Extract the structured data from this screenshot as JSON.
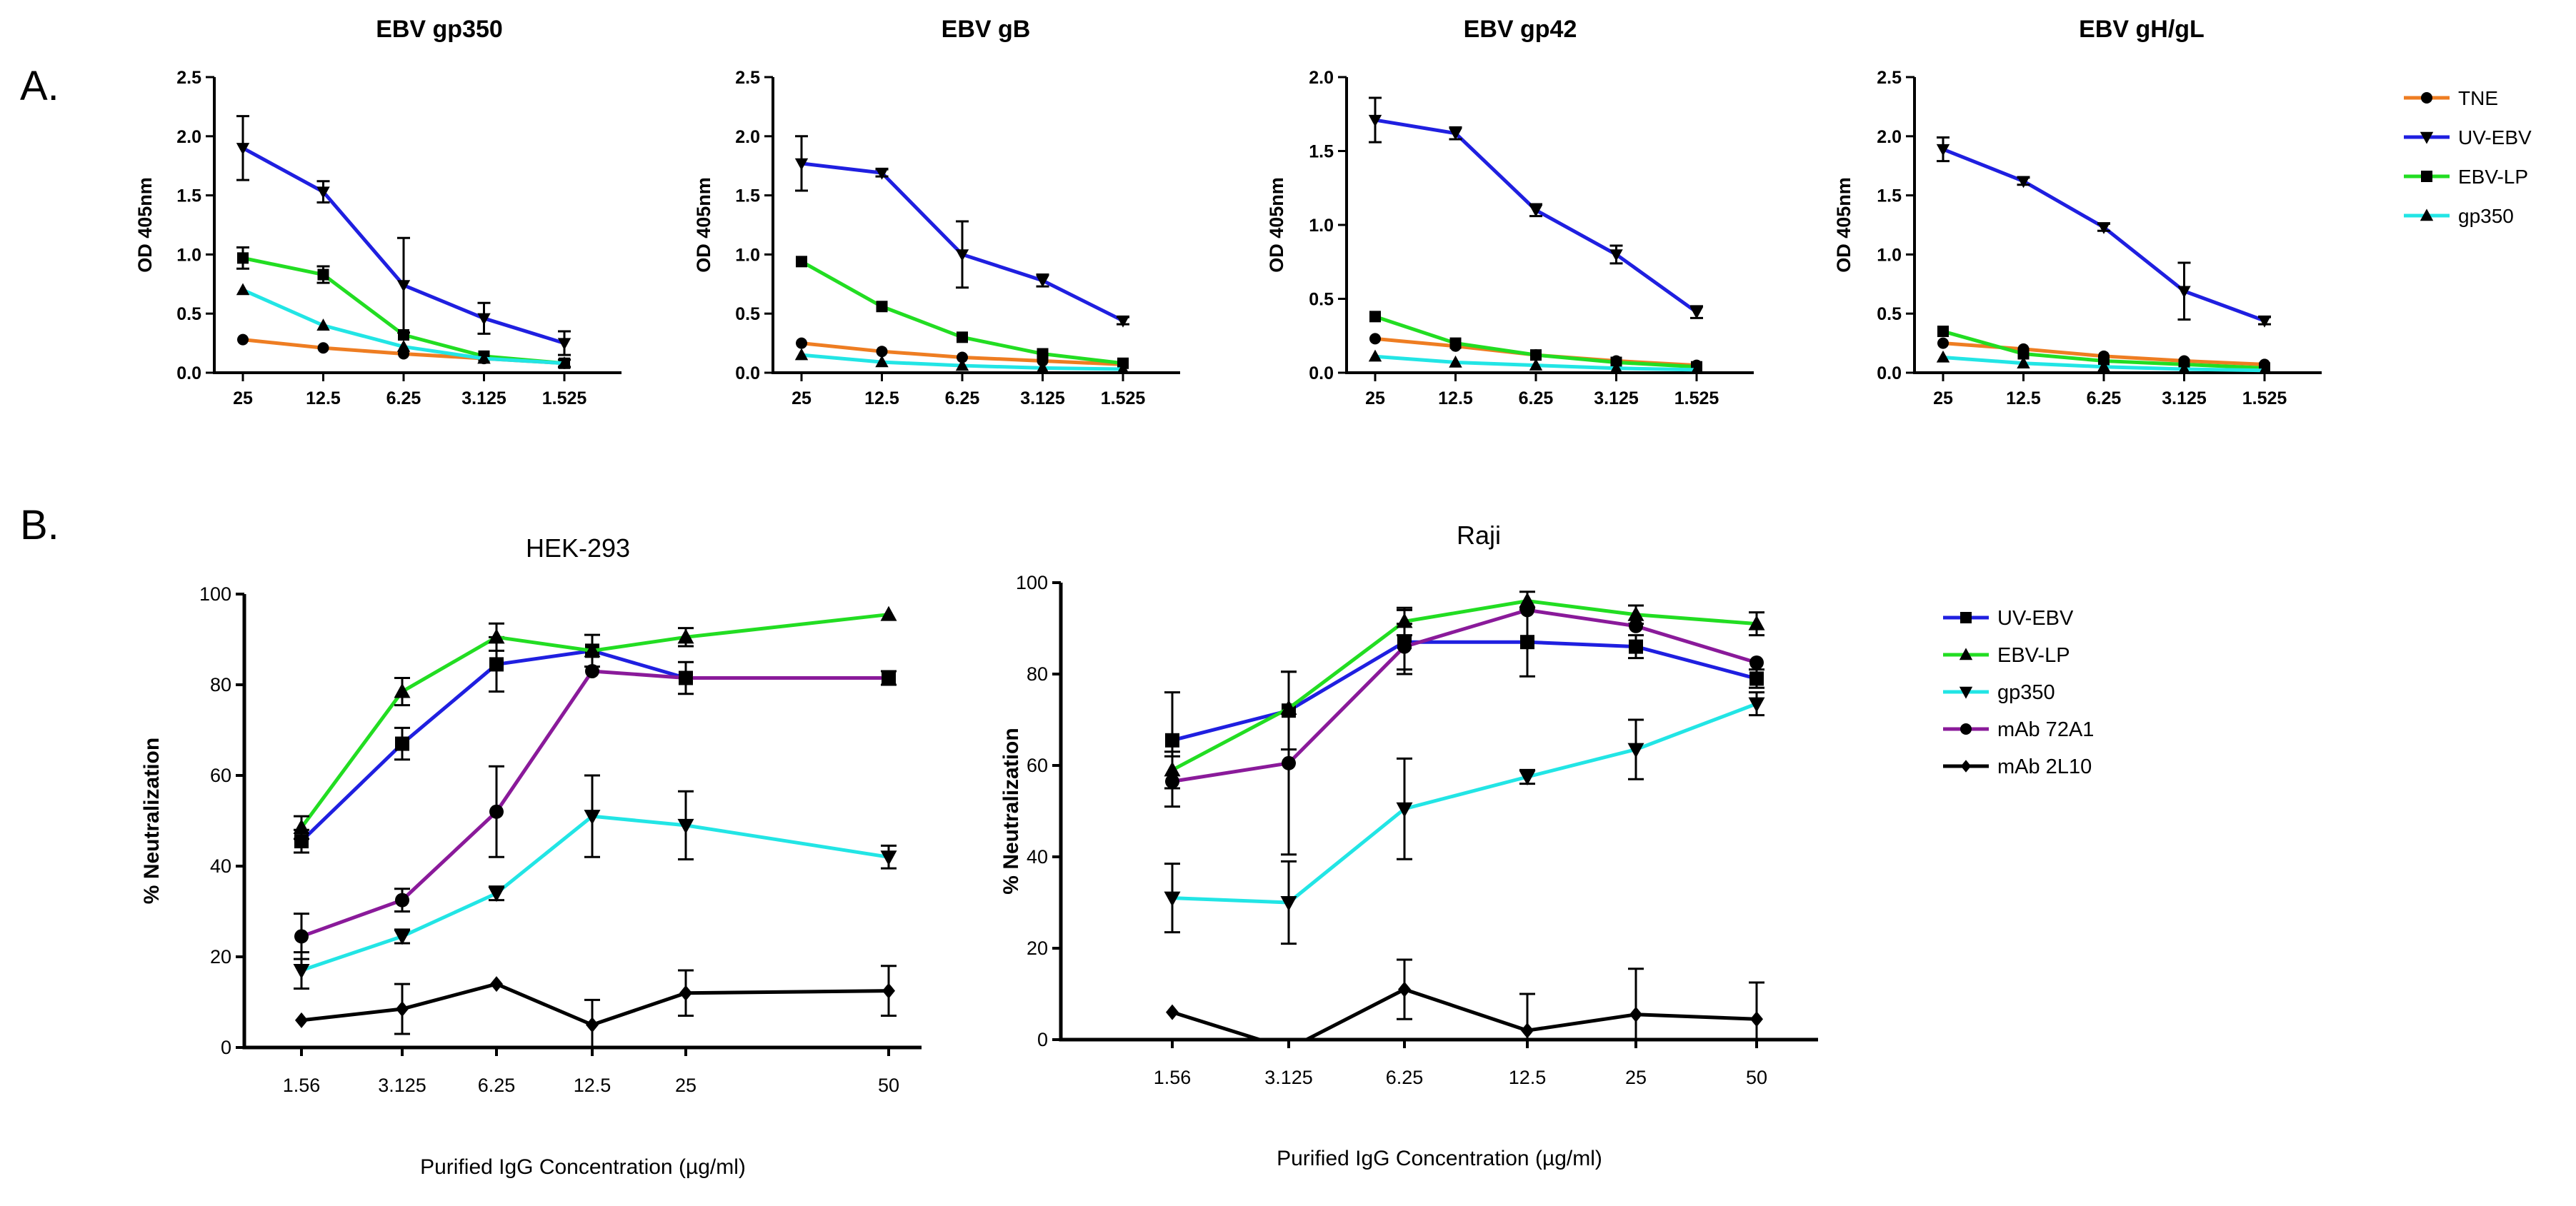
{
  "panel_labels": {
    "a": "A.",
    "b": "B."
  },
  "colors": {
    "TNE": "#ee7d22",
    "UV-EBV": "#1f1fe0",
    "EBV-LP": "#22dd22",
    "gp350": "#22e5e5",
    "mAb 72A1": "#8a1a9a",
    "mAb 2L10": "#000000"
  },
  "chart_data": [
    {
      "type": "line",
      "panel": "A",
      "title": "EBV gp350",
      "xlabel": "",
      "ylabel": "OD 405nm",
      "ylim": [
        0,
        2.5
      ],
      "yticks": [
        "0.0",
        "0.5",
        "1.0",
        "1.5",
        "2.0",
        "2.5"
      ],
      "categories": [
        "25",
        "12.5",
        "6.25",
        "3.125",
        "1.525"
      ],
      "series": [
        {
          "name": "TNE",
          "marker": "circle",
          "values": [
            0.28,
            0.21,
            0.16,
            0.12,
            0.08
          ],
          "errors": [
            0,
            0,
            0,
            0,
            0
          ]
        },
        {
          "name": "UV-EBV",
          "marker": "triangle-down",
          "values": [
            1.9,
            1.53,
            0.74,
            0.46,
            0.25
          ],
          "errors": [
            0.27,
            0.09,
            0.4,
            0.13,
            0.1
          ]
        },
        {
          "name": "EBV-LP",
          "marker": "square",
          "values": [
            0.97,
            0.83,
            0.32,
            0.14,
            0.08
          ],
          "errors": [
            0.09,
            0.07,
            0,
            0,
            0.03
          ]
        },
        {
          "name": "gp350",
          "marker": "triangle-up",
          "values": [
            0.7,
            0.4,
            0.22,
            0.12,
            0.08
          ],
          "errors": [
            0,
            0,
            0,
            0,
            0
          ]
        }
      ]
    },
    {
      "type": "line",
      "panel": "A",
      "title": "EBV gB",
      "xlabel": "",
      "ylabel": "OD 405nm",
      "ylim": [
        0,
        2.5
      ],
      "yticks": [
        "0.0",
        "0.5",
        "1.0",
        "1.5",
        "2.0",
        "2.5"
      ],
      "categories": [
        "25",
        "12.5",
        "6.25",
        "3.125",
        "1.525"
      ],
      "series": [
        {
          "name": "TNE",
          "marker": "circle",
          "values": [
            0.25,
            0.18,
            0.13,
            0.1,
            0.07
          ],
          "errors": [
            0,
            0,
            0,
            0,
            0
          ]
        },
        {
          "name": "UV-EBV",
          "marker": "triangle-down",
          "values": [
            1.77,
            1.69,
            1.0,
            0.78,
            0.44
          ],
          "errors": [
            0.23,
            0.03,
            0.28,
            0.05,
            0.03
          ]
        },
        {
          "name": "EBV-LP",
          "marker": "square",
          "values": [
            0.94,
            0.56,
            0.3,
            0.16,
            0.08
          ],
          "errors": [
            0,
            0,
            0,
            0,
            0
          ]
        },
        {
          "name": "gp350",
          "marker": "triangle-up",
          "values": [
            0.15,
            0.09,
            0.06,
            0.04,
            0.03
          ],
          "errors": [
            0,
            0,
            0,
            0,
            0
          ]
        }
      ]
    },
    {
      "type": "line",
      "panel": "A",
      "title": "EBV gp42",
      "xlabel": "",
      "ylabel": "OD 405nm",
      "ylim": [
        0,
        2.0
      ],
      "yticks": [
        "0.0",
        "0.5",
        "1.0",
        "1.5",
        "2.0"
      ],
      "categories": [
        "25",
        "12.5",
        "6.25",
        "3.125",
        "1.525"
      ],
      "series": [
        {
          "name": "TNE",
          "marker": "circle",
          "values": [
            0.23,
            0.18,
            0.12,
            0.08,
            0.05
          ],
          "errors": [
            0,
            0,
            0,
            0,
            0
          ]
        },
        {
          "name": "UV-EBV",
          "marker": "triangle-down",
          "values": [
            1.71,
            1.62,
            1.1,
            0.8,
            0.41
          ],
          "errors": [
            0.15,
            0.04,
            0.04,
            0.06,
            0.04
          ]
        },
        {
          "name": "EBV-LP",
          "marker": "square",
          "values": [
            0.38,
            0.2,
            0.12,
            0.07,
            0.04
          ],
          "errors": [
            0,
            0,
            0,
            0,
            0
          ]
        },
        {
          "name": "gp350",
          "marker": "triangle-up",
          "values": [
            0.11,
            0.07,
            0.05,
            0.03,
            0.02
          ],
          "errors": [
            0,
            0,
            0,
            0,
            0
          ]
        }
      ]
    },
    {
      "type": "line",
      "panel": "A",
      "title": "EBV gH/gL",
      "xlabel": "",
      "ylabel": "OD 405nm",
      "ylim": [
        0,
        2.5
      ],
      "yticks": [
        "0.0",
        "0.5",
        "1.0",
        "1.5",
        "2.0",
        "2.5"
      ],
      "categories": [
        "25",
        "12.5",
        "6.25",
        "3.125",
        "1.525"
      ],
      "series": [
        {
          "name": "TNE",
          "marker": "circle",
          "values": [
            0.25,
            0.2,
            0.14,
            0.1,
            0.07
          ],
          "errors": [
            0,
            0,
            0,
            0,
            0
          ]
        },
        {
          "name": "UV-EBV",
          "marker": "triangle-down",
          "values": [
            1.89,
            1.62,
            1.23,
            0.69,
            0.44
          ],
          "errors": [
            0.1,
            0.03,
            0.03,
            0.24,
            0.03
          ]
        },
        {
          "name": "EBV-LP",
          "marker": "square",
          "values": [
            0.35,
            0.16,
            0.1,
            0.07,
            0.04
          ],
          "errors": [
            0,
            0,
            0,
            0,
            0
          ]
        },
        {
          "name": "gp350",
          "marker": "triangle-up",
          "values": [
            0.13,
            0.08,
            0.05,
            0.03,
            0.02
          ],
          "errors": [
            0,
            0,
            0,
            0,
            0
          ]
        }
      ]
    },
    {
      "type": "line",
      "panel": "B",
      "title": "HEK-293",
      "xlabel": "Purified IgG Concentration (µg/ml)",
      "ylabel": "% Neutralization",
      "ylim": [
        0,
        100
      ],
      "yticks": [
        "0",
        "20",
        "40",
        "60",
        "80",
        "100"
      ],
      "categories": [
        "1.56",
        "3.125",
        "6.25",
        "12.5",
        "25",
        "50"
      ],
      "series": [
        {
          "name": "UV-EBV",
          "marker": "square",
          "values": [
            45.5,
            67,
            84.5,
            87.5,
            81.5,
            81.5
          ],
          "errors": [
            2.5,
            3.5,
            6,
            3.5,
            3.5,
            1.5
          ]
        },
        {
          "name": "EBV-LP",
          "marker": "triangle-up",
          "values": [
            48.5,
            78.5,
            90.5,
            87.5,
            90.5,
            95.5
          ],
          "errors": [
            2.5,
            3,
            3,
            0,
            2,
            0
          ]
        },
        {
          "name": "gp350",
          "marker": "triangle-down",
          "values": [
            17,
            24.5,
            34,
            51,
            49,
            42
          ],
          "errors": [
            4,
            1.5,
            1.5,
            9,
            7.5,
            2.5
          ]
        },
        {
          "name": "mAb 72A1",
          "marker": "circle",
          "values": [
            24.5,
            32.5,
            52,
            83,
            81.5,
            81.5
          ],
          "errors": [
            5,
            2.5,
            10,
            0,
            0,
            0
          ]
        },
        {
          "name": "mAb 2L10",
          "marker": "diamond",
          "values": [
            6,
            8.5,
            14,
            5,
            12,
            12.5
          ],
          "errors": [
            0,
            5.5,
            0,
            5.5,
            5,
            5.5
          ]
        }
      ]
    },
    {
      "type": "line",
      "panel": "B",
      "title": "Raji",
      "xlabel": "Purified IgG Concentration (µg/ml)",
      "ylabel": "% Neutralization",
      "ylim": [
        0,
        100
      ],
      "yticks": [
        "0",
        "20",
        "40",
        "60",
        "80",
        "100"
      ],
      "categories": [
        "1.56",
        "3.125",
        "6.25",
        "12.5",
        "25",
        "50"
      ],
      "series": [
        {
          "name": "UV-EBV",
          "marker": "square",
          "values": [
            65.5,
            72,
            87,
            87,
            86,
            79
          ],
          "errors": [
            10.5,
            8.5,
            7,
            7.5,
            2.5,
            2
          ]
        },
        {
          "name": "EBV-LP",
          "marker": "triangle-up",
          "values": [
            59,
            72.5,
            91.5,
            96,
            93,
            91
          ],
          "errors": [
            4,
            0,
            3,
            2,
            2,
            2.5
          ]
        },
        {
          "name": "gp350",
          "marker": "triangle-down",
          "values": [
            31,
            30,
            50.5,
            57.5,
            63.5,
            73.5
          ],
          "errors": [
            7.5,
            9,
            11,
            1.5,
            6.5,
            2.5
          ]
        },
        {
          "name": "mAb 72A1",
          "marker": "circle",
          "values": [
            56.5,
            60.5,
            86,
            94,
            90.5,
            82.5
          ],
          "errors": [
            5.5,
            20,
            5,
            0,
            0,
            0
          ]
        },
        {
          "name": "mAb 2L10",
          "marker": "diamond",
          "values": [
            6,
            -2,
            11,
            2,
            5.5,
            4.5
          ],
          "errors": [
            0,
            0,
            6.5,
            8,
            10,
            8
          ]
        }
      ]
    }
  ],
  "legend_a": [
    "TNE",
    "UV-EBV",
    "EBV-LP",
    "gp350"
  ],
  "legend_b": [
    "UV-EBV",
    "EBV-LP",
    "gp350",
    "mAb 72A1",
    "mAb 2L10"
  ]
}
